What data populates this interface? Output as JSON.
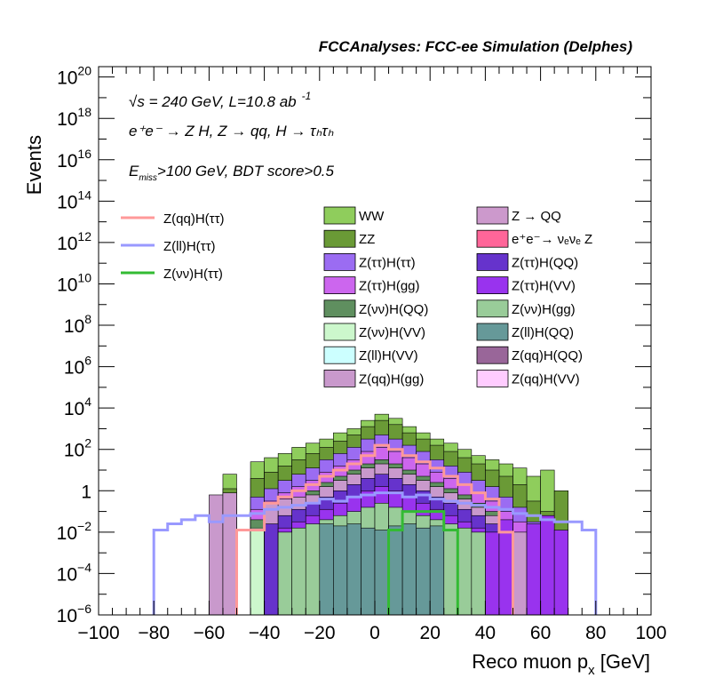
{
  "chart_data": {
    "type": "bar",
    "title": "FCCAnalyses: FCC-ee Simulation (Delphes)",
    "xlabel": "Reco muon p",
    "xlabel_sub": "x",
    "xlabel_unit": "[GeV]",
    "ylabel": "Events",
    "xlim": [
      -100,
      100
    ],
    "ylim_log10": [
      -6,
      20.5
    ],
    "yscale": "log",
    "x_ticks": [
      -100,
      -80,
      -60,
      -40,
      -20,
      0,
      20,
      40,
      60,
      80,
      100
    ],
    "x_tick_labels": [
      "−100",
      "−80",
      "−60",
      "−40",
      "−20",
      "0",
      "20",
      "40",
      "60",
      "80",
      "100"
    ],
    "y_ticks": [
      {
        "exp": -6,
        "base": "10",
        "sup": "−6"
      },
      {
        "exp": -4,
        "base": "10",
        "sup": "−4"
      },
      {
        "exp": -2,
        "base": "10",
        "sup": "−2"
      },
      {
        "exp": 0,
        "base": "1",
        "sup": ""
      },
      {
        "exp": 2,
        "base": "10",
        "sup": "2"
      },
      {
        "exp": 4,
        "base": "10",
        "sup": "4"
      },
      {
        "exp": 6,
        "base": "10",
        "sup": "6"
      },
      {
        "exp": 8,
        "base": "10",
        "sup": "8"
      },
      {
        "exp": 10,
        "base": "10",
        "sup": "10"
      },
      {
        "exp": 12,
        "base": "10",
        "sup": "12"
      },
      {
        "exp": 14,
        "base": "10",
        "sup": "14"
      },
      {
        "exp": 16,
        "base": "10",
        "sup": "16"
      },
      {
        "exp": 18,
        "base": "10",
        "sup": "18"
      },
      {
        "exp": 20,
        "base": "10",
        "sup": "20"
      }
    ],
    "annotations": {
      "line1_sqrt": "√s",
      "line1_rest": " = 240 GeV, L=10.8 ab",
      "line1_sup": "-1",
      "line2": "e⁺e⁻ → Z H, Z → qq, H → τₕτₕ",
      "line3_E": "E",
      "line3_sub": "miss",
      "line3_rest": ">100 GeV, BDT score>0.5"
    },
    "bin_edges": [
      -100,
      -95,
      -90,
      -85,
      -80,
      -75,
      -70,
      -65,
      -60,
      -55,
      -50,
      -45,
      -40,
      -35,
      -30,
      -25,
      -20,
      -15,
      -10,
      -5,
      0,
      5,
      10,
      15,
      20,
      25,
      30,
      35,
      40,
      45,
      50,
      55,
      60,
      65,
      70,
      75,
      80,
      85,
      90,
      95,
      100
    ],
    "stack_series": [
      {
        "name": "WW",
        "color": "#8fcd5c",
        "log10": [
          null,
          null,
          null,
          null,
          null,
          null,
          null,
          null,
          null,
          0.8,
          null,
          1.4,
          1.6,
          1.8,
          2.1,
          2.3,
          2.5,
          2.8,
          3.0,
          3.4,
          3.7,
          3.5,
          3.1,
          2.8,
          2.5,
          2.3,
          2.0,
          1.7,
          1.5,
          1.3,
          1.1,
          0.7,
          1.0,
          -1.5,
          null,
          null,
          null,
          null,
          null,
          null
        ]
      },
      {
        "name": "ZZ",
        "color": "#6a9a36",
        "log10": [
          null,
          null,
          null,
          null,
          null,
          null,
          null,
          null,
          null,
          0.1,
          null,
          0.6,
          0.9,
          1.2,
          1.5,
          1.8,
          2.1,
          2.4,
          2.7,
          3.1,
          3.4,
          3.2,
          2.8,
          2.5,
          2.2,
          1.9,
          1.6,
          1.3,
          1.0,
          0.7,
          0.3,
          -0.5,
          -1.0,
          0.0,
          null,
          null,
          null,
          null,
          null,
          null
        ]
      },
      {
        "name": "Z(ττ)H(ττ)",
        "color": "#9b6cf2",
        "log10": [
          null,
          null,
          null,
          null,
          null,
          null,
          null,
          null,
          null,
          -0.8,
          null,
          -0.3,
          0.1,
          0.5,
          0.8,
          1.1,
          1.5,
          1.8,
          2.1,
          2.5,
          2.7,
          2.5,
          2.2,
          1.9,
          1.5,
          1.2,
          0.9,
          0.5,
          0.2,
          -0.3,
          -0.8,
          -1.5,
          null,
          null,
          null,
          null,
          null,
          null,
          null,
          null
        ]
      },
      {
        "name": "Z(ττ)H(gg)",
        "color": "#cc66ee",
        "log10": [
          null,
          null,
          null,
          null,
          null,
          null,
          null,
          null,
          null,
          -1.5,
          null,
          -0.9,
          -0.5,
          -0.1,
          0.2,
          0.5,
          0.9,
          1.2,
          1.5,
          1.9,
          2.1,
          1.9,
          1.6,
          1.3,
          0.9,
          0.6,
          0.3,
          -0.1,
          -0.5,
          -1.0,
          -1.5,
          null,
          null,
          null,
          null,
          null,
          null,
          null,
          null,
          null
        ]
      },
      {
        "name": "Z(νν)H(QQ)",
        "color": "#5f8f5f",
        "log10": [
          null,
          null,
          null,
          null,
          null,
          null,
          null,
          null,
          null,
          null,
          null,
          -1.4,
          -1.0,
          -0.6,
          -0.3,
          0.0,
          0.4,
          0.7,
          1.0,
          1.3,
          1.5,
          1.3,
          1.0,
          0.7,
          0.4,
          0.1,
          -0.2,
          -0.6,
          -1.0,
          -1.5,
          null,
          null,
          null,
          null,
          null,
          null,
          null,
          null,
          null,
          null
        ]
      },
      {
        "name": "Z(νν)H(VV)",
        "color": "#ccf7cc",
        "log10": [
          null,
          null,
          null,
          null,
          null,
          null,
          null,
          null,
          null,
          null,
          null,
          -1.8,
          -1.4,
          -1.0,
          -0.7,
          -0.4,
          -0.1,
          0.2,
          0.5,
          0.8,
          1.0,
          0.8,
          0.5,
          0.2,
          -0.1,
          -0.4,
          -0.7,
          -1.0,
          -1.4,
          -1.8,
          null,
          null,
          null,
          null,
          null,
          null,
          null,
          null,
          null,
          null
        ]
      },
      {
        "name": "Z(ll)H(VV)",
        "color": "#ccffff",
        "log10": [
          null,
          null,
          null,
          null,
          null,
          null,
          null,
          null,
          null,
          null,
          null,
          null,
          -2.0,
          -1.7,
          -1.5,
          -1.3,
          -1.2,
          -1.6,
          -1.4,
          -1.5,
          -1.3,
          -1.4,
          -1.6,
          -1.5,
          -1.7,
          -1.8,
          -2.0,
          null,
          null,
          null,
          null,
          null,
          null,
          null,
          null,
          null,
          null,
          null,
          null,
          null
        ]
      },
      {
        "name": "Z(qq)H(gg)",
        "color": "#c999cc",
        "log10": [
          null,
          null,
          null,
          null,
          null,
          null,
          null,
          null,
          -0.2,
          -0.1,
          null,
          null,
          -0.6,
          -0.4,
          -0.3,
          -0.2,
          0.2,
          0.5,
          0.8,
          1.1,
          1.3,
          1.1,
          0.8,
          0.5,
          0.2,
          -0.1,
          -0.4,
          -0.8,
          -1.2,
          -1.6,
          -2.0,
          null,
          -1.2,
          null,
          null,
          null,
          null,
          null,
          null,
          null
        ]
      },
      {
        "name": "Z → QQ",
        "color": "#cc99cc",
        "log10": [
          null,
          null,
          null,
          null,
          null,
          null,
          null,
          null,
          null,
          null,
          null,
          null,
          null,
          null,
          null,
          null,
          null,
          null,
          null,
          null,
          null,
          null,
          null,
          null,
          null,
          null,
          null,
          null,
          null,
          null,
          null,
          null,
          null,
          null,
          null,
          null,
          null,
          null,
          null,
          null
        ]
      },
      {
        "name": "e⁺e⁻→ νₑνₑ Z",
        "color": "#ff6699",
        "log10": [
          null,
          null,
          null,
          null,
          null,
          null,
          null,
          null,
          null,
          null,
          null,
          null,
          null,
          null,
          null,
          null,
          null,
          null,
          null,
          null,
          null,
          null,
          null,
          null,
          null,
          null,
          null,
          null,
          null,
          null,
          null,
          null,
          null,
          null,
          null,
          null,
          null,
          null,
          null,
          null
        ]
      },
      {
        "name": "Z(ττ)H(QQ)",
        "color": "#6633cc",
        "log10": [
          null,
          null,
          null,
          null,
          null,
          null,
          null,
          null,
          null,
          null,
          null,
          null,
          -1.6,
          -1.2,
          -0.9,
          -0.6,
          -0.3,
          0.0,
          0.3,
          0.6,
          0.8,
          0.6,
          0.3,
          0.0,
          -0.3,
          -0.6,
          -0.9,
          -1.2,
          -1.6,
          -2.0,
          null,
          null,
          null,
          null,
          null,
          null,
          null,
          null,
          null,
          null
        ]
      },
      {
        "name": "Z(ττ)H(VV)",
        "color": "#9933ee",
        "log10": [
          null,
          null,
          null,
          null,
          null,
          null,
          null,
          null,
          null,
          null,
          null,
          null,
          null,
          -1.8,
          -1.5,
          -1.2,
          -0.9,
          -0.6,
          -0.3,
          0.0,
          0.2,
          0.0,
          -0.3,
          -0.6,
          -0.9,
          -1.2,
          -1.5,
          -1.8,
          -2.0,
          -1.4,
          null,
          -1.6,
          -1.2,
          -1.9,
          null,
          null,
          null,
          null,
          null,
          null
        ]
      },
      {
        "name": "Z(νν)H(gg)",
        "color": "#99cc99",
        "log10": [
          null,
          null,
          null,
          null,
          null,
          null,
          null,
          null,
          null,
          null,
          null,
          null,
          null,
          -2.0,
          -1.8,
          -1.6,
          -1.4,
          -1.2,
          -1.0,
          -0.8,
          -0.6,
          -0.8,
          -1.0,
          -1.2,
          -1.4,
          -1.6,
          -1.8,
          -2.0,
          null,
          null,
          null,
          null,
          null,
          null,
          null,
          null,
          null,
          null,
          null,
          null
        ]
      },
      {
        "name": "Z(ll)H(QQ)",
        "color": "#669999",
        "log10": [
          null,
          null,
          null,
          null,
          null,
          null,
          null,
          null,
          null,
          null,
          null,
          null,
          null,
          null,
          null,
          null,
          -1.6,
          -1.7,
          -1.6,
          -1.8,
          -1.9,
          -1.7,
          -1.6,
          -1.8,
          -1.7,
          null,
          null,
          null,
          null,
          null,
          null,
          null,
          null,
          null,
          null,
          null,
          null,
          null,
          null,
          null
        ]
      },
      {
        "name": "Z(qq)H(QQ)",
        "color": "#996699",
        "log10": [
          null,
          null,
          null,
          null,
          null,
          null,
          null,
          null,
          null,
          null,
          null,
          null,
          null,
          null,
          null,
          null,
          null,
          null,
          null,
          null,
          null,
          null,
          null,
          null,
          null,
          null,
          null,
          null,
          null,
          null,
          null,
          null,
          null,
          null,
          null,
          null,
          null,
          null,
          null,
          null
        ]
      },
      {
        "name": "Z(qq)H(VV)",
        "color": "#ffccff",
        "log10": [
          null,
          null,
          null,
          null,
          null,
          null,
          null,
          null,
          null,
          null,
          null,
          null,
          null,
          null,
          null,
          null,
          null,
          null,
          null,
          null,
          null,
          null,
          null,
          null,
          null,
          null,
          null,
          null,
          null,
          null,
          null,
          null,
          null,
          null,
          null,
          null,
          null,
          null,
          null,
          null
        ]
      }
    ],
    "signal_series": [
      {
        "name": "Z(qq)H(ττ)",
        "color": "#ff9999",
        "log10": [
          null,
          null,
          null,
          null,
          null,
          null,
          null,
          null,
          null,
          null,
          -1.9,
          -1.9,
          -0.6,
          -0.3,
          0.0,
          0.3,
          0.7,
          1.0,
          1.3,
          1.7,
          2.2,
          2.0,
          1.7,
          1.4,
          1.1,
          0.7,
          0.3,
          -0.1,
          -0.4,
          -2.0,
          null,
          null,
          null,
          null,
          null,
          null,
          null,
          null,
          null,
          null
        ]
      },
      {
        "name": "Z(ll)H(ττ)",
        "color": "#9999ff",
        "log10": [
          null,
          null,
          null,
          null,
          -1.9,
          -1.6,
          -1.4,
          -1.2,
          -1.5,
          -1.2,
          -1.2,
          -1.1,
          -0.9,
          -0.8,
          -0.7,
          -0.6,
          -0.4,
          -0.5,
          -0.3,
          -0.2,
          -0.1,
          -0.1,
          -0.3,
          -0.2,
          -0.4,
          -0.5,
          -0.6,
          -0.7,
          -0.8,
          -0.9,
          -1.1,
          -1.2,
          -1.4,
          -1.5,
          -1.5,
          -1.9,
          null,
          null,
          null,
          null
        ]
      },
      {
        "name": "Z(νν)H(ττ)",
        "color": "#33bb33",
        "log10": [
          null,
          null,
          null,
          null,
          null,
          null,
          null,
          null,
          null,
          null,
          null,
          null,
          null,
          null,
          null,
          null,
          null,
          null,
          null,
          null,
          null,
          -1.9,
          -1.0,
          -1.0,
          -1.0,
          -1.9,
          null,
          null,
          null,
          null,
          null,
          null,
          null,
          null,
          null,
          null,
          null,
          null,
          null,
          null
        ]
      }
    ]
  },
  "legend": {
    "lines": [
      {
        "label": "Z(qq)H(ττ)",
        "color": "#ff9999"
      },
      {
        "label": "Z(ll)H(ττ)",
        "color": "#9999ff"
      },
      {
        "label": "Z(νν)H(ττ)",
        "color": "#33bb33"
      }
    ],
    "boxes_col1": [
      {
        "label": "WW",
        "color": "#8fcd5c"
      },
      {
        "label": "ZZ",
        "color": "#6a9a36"
      },
      {
        "label": "Z(ττ)H(ττ)",
        "color": "#9b6cf2"
      },
      {
        "label": "Z(ττ)H(gg)",
        "color": "#cc66ee"
      },
      {
        "label": "Z(νν)H(QQ)",
        "color": "#5f8f5f"
      },
      {
        "label": "Z(νν)H(VV)",
        "color": "#ccf7cc"
      },
      {
        "label": "Z(ll)H(VV)",
        "color": "#ccffff"
      },
      {
        "label": "Z(qq)H(gg)",
        "color": "#c999cc"
      }
    ],
    "boxes_col2": [
      {
        "label": "Z → QQ",
        "color": "#cc99cc"
      },
      {
        "label": "e⁺e⁻→ νₑνₑ Z",
        "color": "#ff6699"
      },
      {
        "label": "Z(ττ)H(QQ)",
        "color": "#6633cc"
      },
      {
        "label": "Z(ττ)H(VV)",
        "color": "#9933ee"
      },
      {
        "label": "Z(νν)H(gg)",
        "color": "#99cc99"
      },
      {
        "label": "Z(ll)H(QQ)",
        "color": "#669999"
      },
      {
        "label": "Z(qq)H(QQ)",
        "color": "#996699"
      },
      {
        "label": "Z(qq)H(VV)",
        "color": "#ffccff"
      }
    ]
  }
}
